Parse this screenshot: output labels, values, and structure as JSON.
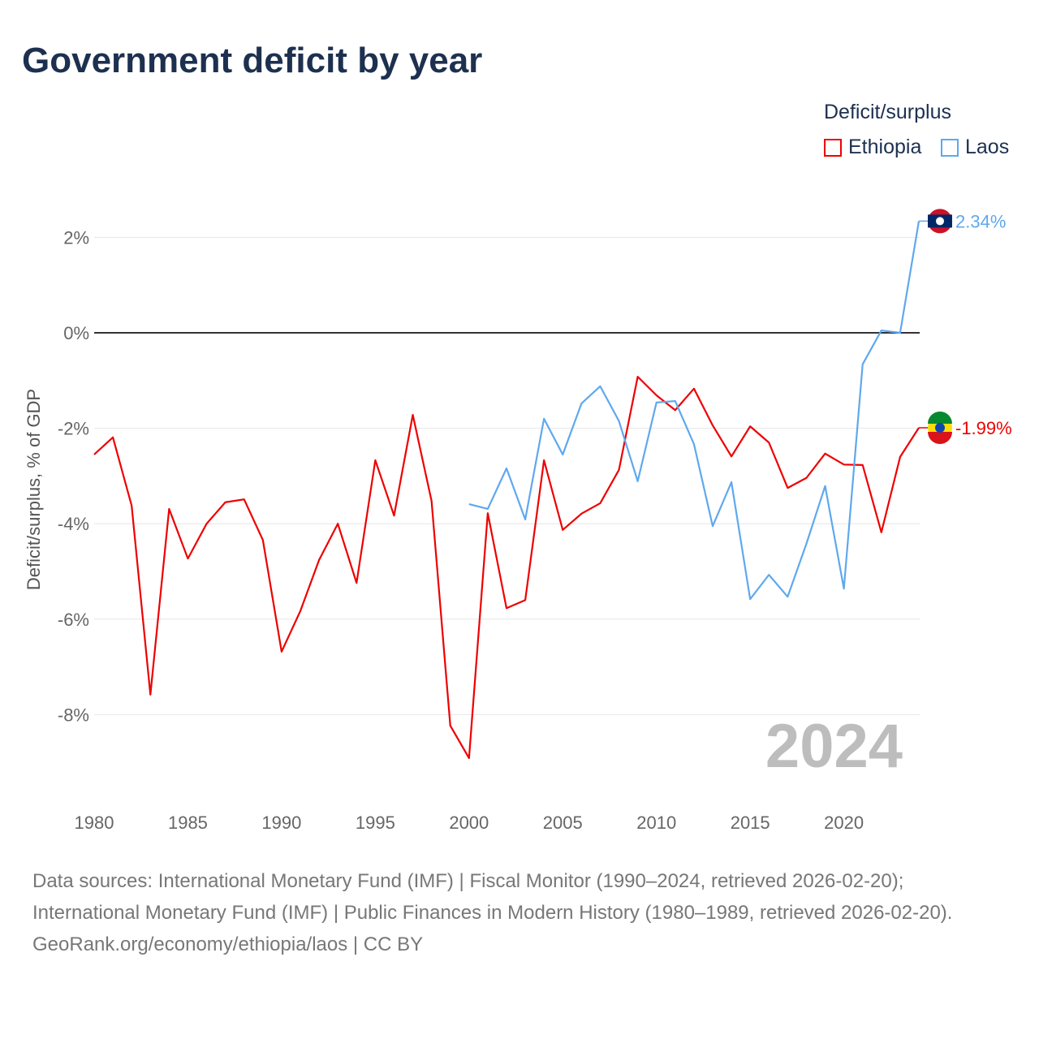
{
  "title": "Government deficit by year",
  "legend": {
    "title": "Deficit/surplus",
    "items": [
      {
        "name": "Ethiopia",
        "color": "#ee0000"
      },
      {
        "name": "Laos",
        "color": "#5fa8ee"
      }
    ]
  },
  "chart_data": {
    "type": "line",
    "title": "Government deficit by year",
    "xlabel": "",
    "ylabel": "Deficit/surplus, % of GDP",
    "xlim": [
      1980,
      2024
    ],
    "ylim": [
      -9.5,
      3
    ],
    "yticks": [
      2,
      0,
      -2,
      -4,
      -6,
      -8
    ],
    "ytick_labels": [
      "2%",
      "0%",
      "-2%",
      "-4%",
      "-6%",
      "-8%"
    ],
    "xticks": [
      1980,
      1985,
      1990,
      1995,
      2000,
      2005,
      2010,
      2015,
      2020
    ],
    "xtick_labels": [
      "1980",
      "1985",
      "1990",
      "1995",
      "2000",
      "2005",
      "2010",
      "2015",
      "2020"
    ],
    "grid": true,
    "legend_position": "top-right",
    "year_label": "2024",
    "series": [
      {
        "name": "Ethiopia",
        "color": "#ee0000",
        "end_label": "-1.99%",
        "x_start": 1980,
        "values": [
          -2.55,
          -2.19,
          -3.62,
          -7.58,
          -3.69,
          -4.73,
          -4.0,
          -3.55,
          -3.49,
          -4.34,
          -6.68,
          -5.83,
          -4.76,
          -4.0,
          -5.24,
          -2.67,
          -3.83,
          -1.72,
          -3.52,
          -8.23,
          -8.91,
          -3.78,
          -5.77,
          -5.6,
          -2.67,
          -4.13,
          -3.79,
          -3.57,
          -2.87,
          -0.92,
          -1.31,
          -1.62,
          -1.17,
          -1.94,
          -2.59,
          -1.96,
          -2.3,
          -3.25,
          -3.04,
          -2.53,
          -2.76,
          -2.77,
          -4.18,
          -2.6,
          -1.99
        ]
      },
      {
        "name": "Laos",
        "color": "#5fa8ee",
        "end_label": "2.34%",
        "x_start": 2000,
        "values": [
          -3.59,
          -3.69,
          -2.84,
          -3.91,
          -1.8,
          -2.55,
          -1.48,
          -1.12,
          -1.85,
          -3.11,
          -1.46,
          -1.43,
          -2.33,
          -4.05,
          -3.13,
          -5.58,
          -5.07,
          -5.53,
          -4.42,
          -3.21,
          -5.36,
          -0.66,
          0.05,
          0.0,
          2.34
        ]
      }
    ]
  },
  "sources": {
    "line1": "Data sources: International Monetary Fund (IMF) | Fiscal Monitor (1990–2024, retrieved 2026-02-20); International Monetary Fund (IMF) | Public Finances in Modern History (1980–1989, retrieved 2026-02-20).",
    "line2": "GeoRank.org/economy/ethiopia/laos | CC BY"
  }
}
